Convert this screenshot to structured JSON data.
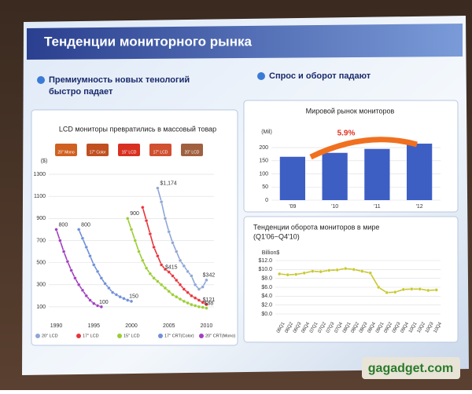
{
  "slide": {
    "title": "Тенденции мониторного рынка",
    "bullets": [
      "Премиумность новых тенологий",
      "быстро падает",
      "Спрос и оборот падают"
    ],
    "watermark": "gagadget.com"
  },
  "chart_data": [
    {
      "type": "line",
      "title": "LCD мониторы превратились в массовый товар",
      "ylabel": "($)",
      "annotations": [
        "20\" Mono",
        "17\" Color",
        "15\" LCD",
        "17\" LCD",
        "20\" LCD"
      ],
      "xlim": [
        1989,
        2011
      ],
      "xticks": [
        1990,
        1995,
        2000,
        2005,
        2010
      ],
      "ylim": [
        0,
        1350
      ],
      "yticks": [
        100,
        300,
        500,
        700,
        900,
        1100,
        1300
      ],
      "series": [
        {
          "name": "20\" LCD",
          "color": "#8ea6d6",
          "x": [
            2003.5,
            2004,
            2004.5,
            2005,
            2005.5,
            2006,
            2006.5,
            2007,
            2007.5,
            2008,
            2008.5,
            2009,
            2009.5,
            2010
          ],
          "values": [
            1174,
            1050,
            900,
            780,
            680,
            600,
            520,
            470,
            420,
            380,
            300,
            260,
            280,
            342
          ],
          "value_labels": [
            "$1,174",
            null,
            null,
            null,
            null,
            null,
            null,
            null,
            null,
            null,
            null,
            null,
            null,
            "$342"
          ]
        },
        {
          "name": "17\" LCD",
          "color": "#e8343c",
          "x": [
            2001.5,
            2002,
            2002.5,
            2003,
            2003.5,
            2004,
            2004.5,
            2005,
            2005.5,
            2006,
            2006.5,
            2007,
            2007.5,
            2008,
            2008.5,
            2009,
            2009.5,
            2010
          ],
          "values": [
            1000,
            880,
            760,
            640,
            560,
            480,
            440,
            415,
            380,
            340,
            300,
            260,
            230,
            200,
            180,
            160,
            140,
            121
          ],
          "value_labels": [
            null,
            null,
            null,
            null,
            null,
            null,
            null,
            "$415",
            null,
            null,
            null,
            null,
            null,
            null,
            null,
            null,
            null,
            "$121"
          ]
        },
        {
          "name": "15\" LCD",
          "color": "#9acd32",
          "x": [
            1999.5,
            2000,
            2000.5,
            2001,
            2001.5,
            2002,
            2002.5,
            2003,
            2003.5,
            2004,
            2004.5,
            2005,
            2005.5,
            2006,
            2006.5,
            2007,
            2007.5,
            2008,
            2008.5,
            2009,
            2009.5,
            2010
          ],
          "values": [
            900,
            800,
            700,
            600,
            520,
            450,
            400,
            360,
            330,
            300,
            270,
            240,
            210,
            190,
            170,
            150,
            135,
            120,
            110,
            100,
            95,
            88
          ],
          "value_labels": [
            "900",
            null,
            null,
            null,
            null,
            null,
            null,
            null,
            null,
            null,
            null,
            null,
            null,
            null,
            null,
            null,
            null,
            null,
            null,
            null,
            null,
            "$88"
          ]
        },
        {
          "name": "17\" CRT(Color)",
          "color": "#6f8fd8",
          "x": [
            1993,
            1993.5,
            1994,
            1994.5,
            1995,
            1995.5,
            1996,
            1996.5,
            1997,
            1997.5,
            1998,
            1998.5,
            1999,
            1999.5,
            2000
          ],
          "values": [
            800,
            720,
            640,
            560,
            480,
            420,
            360,
            310,
            270,
            230,
            210,
            190,
            175,
            160,
            150
          ],
          "value_labels": [
            "800",
            null,
            null,
            null,
            null,
            null,
            null,
            null,
            null,
            null,
            null,
            null,
            null,
            null,
            "150"
          ]
        },
        {
          "name": "20\" CRT(Mono)",
          "color": "#a040c0",
          "x": [
            1990,
            1990.5,
            1991,
            1991.5,
            1992,
            1992.5,
            1993,
            1993.5,
            1994,
            1994.5,
            1995,
            1995.5,
            1996
          ],
          "values": [
            800,
            700,
            600,
            510,
            430,
            360,
            300,
            250,
            200,
            160,
            130,
            110,
            100
          ],
          "value_labels": [
            "800",
            null,
            null,
            null,
            null,
            null,
            null,
            null,
            null,
            null,
            null,
            null,
            "100"
          ]
        }
      ]
    },
    {
      "type": "bar",
      "title": "Мировой рынок мониторов",
      "ylabel": "(Mil)",
      "annotations": [
        "5.9%"
      ],
      "categories": [
        "'09",
        "'10",
        "'11",
        "'12"
      ],
      "values": [
        165,
        180,
        195,
        215
      ],
      "color": "#3d5fc4",
      "ylim": [
        0,
        230
      ],
      "yticks": [
        0,
        50,
        100,
        150,
        200
      ]
    },
    {
      "type": "line",
      "title": "Тенденции оборота мониторов в мире",
      "subtitle": "(Q1'06~Q4'10)",
      "ylabel": "Billion$",
      "categories": [
        "06Q1",
        "06Q2",
        "06Q3",
        "06Q4",
        "07Q1",
        "07Q2",
        "07Q3",
        "07Q4",
        "08Q1",
        "08Q2",
        "08Q3",
        "08Q4",
        "09Q1",
        "09Q2",
        "09Q3",
        "09Q4",
        "10Q1",
        "10Q2",
        "10Q3",
        "10Q4"
      ],
      "series": [
        {
          "name": "Billion$",
          "color": "#c8c832",
          "values": [
            9.0,
            8.8,
            8.9,
            9.2,
            9.6,
            9.5,
            9.8,
            9.9,
            10.2,
            10.0,
            9.6,
            9.2,
            6.0,
            4.8,
            4.9,
            5.5,
            5.6,
            5.6,
            5.3,
            5.4
          ]
        }
      ],
      "ylim": [
        0,
        12
      ],
      "yticks": [
        {
          "value": 0,
          "label": "$0.0"
        },
        {
          "value": 2,
          "label": "$2.0"
        },
        {
          "value": 4,
          "label": "$4.0"
        },
        {
          "value": 6,
          "label": "$6.0"
        },
        {
          "value": 8,
          "label": "$8.0"
        },
        {
          "value": 10,
          "label": "$10.0"
        },
        {
          "value": 12,
          "label": "$12.0"
        }
      ]
    }
  ]
}
